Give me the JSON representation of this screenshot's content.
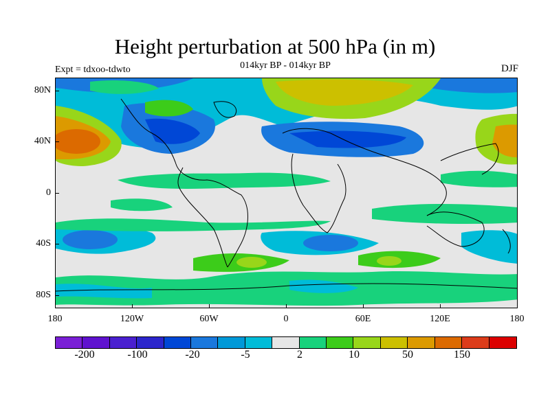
{
  "title": "Height perturbation at 500 hPa (in m)",
  "subtitle": "014kyr BP - 014kyr BP",
  "left_label": "Expt = tdxoo-tdwto",
  "right_label": "DJF",
  "lat_labels": [
    "80N",
    "40N",
    "0",
    "40S",
    "80S"
  ],
  "lon_labels": [
    "180",
    "120W",
    "60W",
    "0",
    "60E",
    "120E",
    "180"
  ],
  "colorbar": {
    "colors": [
      "#7a1fd6",
      "#5f12cf",
      "#4a20d0",
      "#2c26cc",
      "#0047d6",
      "#1a78dd",
      "#0099d8",
      "#00bcd8",
      "#e6e6e6",
      "#18d27c",
      "#3ccc1a",
      "#98d61a",
      "#ccc000",
      "#dc9a00",
      "#dc6a00",
      "#dc3c1a",
      "#dc0000"
    ],
    "labels": [
      "-200",
      "-100",
      "-20",
      "-5",
      "2",
      "10",
      "50",
      "150"
    ]
  },
  "field_features": [
    {
      "name": "north-pacific-high-anomaly",
      "level": "positive-strong"
    },
    {
      "name": "north-america-low-anomaly",
      "level": "negative"
    },
    {
      "name": "arctic-atlantic-positive",
      "level": "positive"
    },
    {
      "name": "eurasia-low-anomaly",
      "level": "negative"
    },
    {
      "name": "west-pacific-high-anomaly",
      "level": "positive-strong"
    },
    {
      "name": "southern-ocean-positive-bands",
      "level": "positive"
    },
    {
      "name": "southern-midlatitude-negative",
      "level": "negative"
    }
  ]
}
